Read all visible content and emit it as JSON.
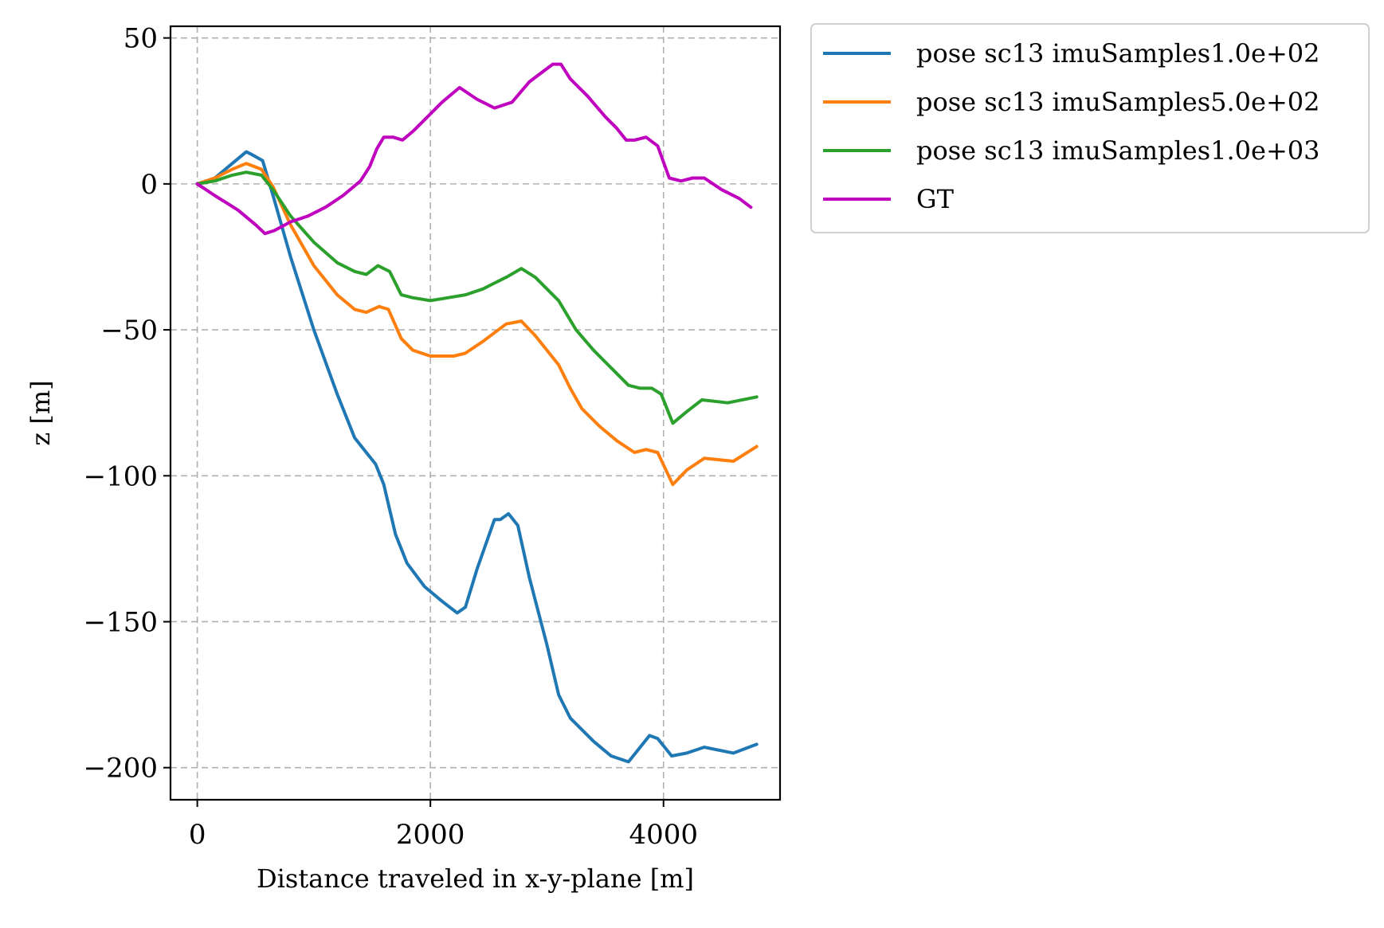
{
  "chart_data": {
    "type": "line",
    "xlabel": "Distance traveled in x-y-plane [m]",
    "ylabel": "z [m]",
    "xlim": [
      -230,
      5000
    ],
    "ylim": [
      -211,
      54
    ],
    "xticks": [
      0,
      2000,
      4000
    ],
    "yticks": [
      50,
      0,
      -50,
      -100,
      -150,
      -200
    ],
    "xtick_labels": [
      "0",
      "2000",
      "4000"
    ],
    "ytick_labels": [
      "50",
      "0",
      "−50",
      "−100",
      "−150",
      "−200"
    ],
    "grid": true,
    "legend_position": "outside-top-right",
    "series": [
      {
        "name": "pose sc13 imuSamples1.0e+02",
        "color": "#1f77b4",
        "points": [
          [
            0,
            0
          ],
          [
            150,
            2
          ],
          [
            300,
            7
          ],
          [
            420,
            11
          ],
          [
            470,
            10
          ],
          [
            560,
            8
          ],
          [
            650,
            -4
          ],
          [
            800,
            -25
          ],
          [
            1000,
            -50
          ],
          [
            1200,
            -72
          ],
          [
            1350,
            -87
          ],
          [
            1450,
            -92
          ],
          [
            1530,
            -96
          ],
          [
            1600,
            -103
          ],
          [
            1700,
            -120
          ],
          [
            1800,
            -130
          ],
          [
            1950,
            -138
          ],
          [
            2100,
            -143
          ],
          [
            2230,
            -147
          ],
          [
            2300,
            -145
          ],
          [
            2400,
            -132
          ],
          [
            2550,
            -115
          ],
          [
            2600,
            -115
          ],
          [
            2670,
            -113
          ],
          [
            2750,
            -117
          ],
          [
            2850,
            -135
          ],
          [
            3000,
            -158
          ],
          [
            3100,
            -175
          ],
          [
            3200,
            -183
          ],
          [
            3400,
            -191
          ],
          [
            3550,
            -196
          ],
          [
            3700,
            -198
          ],
          [
            3800,
            -193
          ],
          [
            3880,
            -189
          ],
          [
            3950,
            -190
          ],
          [
            4070,
            -196
          ],
          [
            4200,
            -195
          ],
          [
            4350,
            -193
          ],
          [
            4600,
            -195
          ],
          [
            4800,
            -192
          ]
        ]
      },
      {
        "name": "pose sc13 imuSamples5.0e+02",
        "color": "#ff7f0e",
        "points": [
          [
            0,
            0
          ],
          [
            150,
            2
          ],
          [
            300,
            5
          ],
          [
            420,
            7
          ],
          [
            550,
            5
          ],
          [
            650,
            -1
          ],
          [
            800,
            -14
          ],
          [
            1000,
            -28
          ],
          [
            1200,
            -38
          ],
          [
            1350,
            -43
          ],
          [
            1450,
            -44
          ],
          [
            1560,
            -42
          ],
          [
            1640,
            -43
          ],
          [
            1750,
            -53
          ],
          [
            1850,
            -57
          ],
          [
            2000,
            -59
          ],
          [
            2200,
            -59
          ],
          [
            2300,
            -58
          ],
          [
            2450,
            -54
          ],
          [
            2550,
            -51
          ],
          [
            2650,
            -48
          ],
          [
            2780,
            -47
          ],
          [
            2900,
            -52
          ],
          [
            3100,
            -62
          ],
          [
            3200,
            -70
          ],
          [
            3300,
            -77
          ],
          [
            3450,
            -83
          ],
          [
            3600,
            -88
          ],
          [
            3750,
            -92
          ],
          [
            3850,
            -91
          ],
          [
            3950,
            -92
          ],
          [
            4080,
            -103
          ],
          [
            4200,
            -98
          ],
          [
            4350,
            -94
          ],
          [
            4600,
            -95
          ],
          [
            4800,
            -90
          ]
        ]
      },
      {
        "name": "pose sc13 imuSamples1.0e+03",
        "color": "#2ca02c",
        "points": [
          [
            0,
            0
          ],
          [
            150,
            1
          ],
          [
            300,
            3
          ],
          [
            420,
            4
          ],
          [
            550,
            3
          ],
          [
            650,
            -2
          ],
          [
            800,
            -11
          ],
          [
            1000,
            -20
          ],
          [
            1200,
            -27
          ],
          [
            1350,
            -30
          ],
          [
            1450,
            -31
          ],
          [
            1550,
            -28
          ],
          [
            1650,
            -30
          ],
          [
            1750,
            -38
          ],
          [
            1850,
            -39
          ],
          [
            2000,
            -40
          ],
          [
            2150,
            -39
          ],
          [
            2300,
            -38
          ],
          [
            2450,
            -36
          ],
          [
            2550,
            -34
          ],
          [
            2650,
            -32
          ],
          [
            2780,
            -29
          ],
          [
            2900,
            -32
          ],
          [
            3100,
            -40
          ],
          [
            3250,
            -50
          ],
          [
            3400,
            -57
          ],
          [
            3550,
            -63
          ],
          [
            3700,
            -69
          ],
          [
            3800,
            -70
          ],
          [
            3900,
            -70
          ],
          [
            3980,
            -72
          ],
          [
            4080,
            -82
          ],
          [
            4200,
            -78
          ],
          [
            4330,
            -74
          ],
          [
            4550,
            -75
          ],
          [
            4800,
            -73
          ]
        ]
      },
      {
        "name": "GT",
        "color": "#bf00bf",
        "points": [
          [
            0,
            0
          ],
          [
            150,
            -4
          ],
          [
            350,
            -9
          ],
          [
            500,
            -14
          ],
          [
            580,
            -17
          ],
          [
            660,
            -16
          ],
          [
            800,
            -13
          ],
          [
            950,
            -11
          ],
          [
            1100,
            -8
          ],
          [
            1250,
            -4
          ],
          [
            1400,
            1
          ],
          [
            1480,
            6
          ],
          [
            1540,
            12
          ],
          [
            1600,
            16
          ],
          [
            1680,
            16
          ],
          [
            1760,
            15
          ],
          [
            1850,
            18
          ],
          [
            1950,
            22
          ],
          [
            2100,
            28
          ],
          [
            2250,
            33
          ],
          [
            2400,
            29
          ],
          [
            2550,
            26
          ],
          [
            2700,
            28
          ],
          [
            2850,
            35
          ],
          [
            2950,
            38
          ],
          [
            3050,
            41
          ],
          [
            3120,
            41
          ],
          [
            3200,
            36
          ],
          [
            3350,
            30
          ],
          [
            3500,
            23
          ],
          [
            3600,
            19
          ],
          [
            3680,
            15
          ],
          [
            3750,
            15
          ],
          [
            3850,
            16
          ],
          [
            3950,
            13
          ],
          [
            4050,
            2
          ],
          [
            4150,
            1
          ],
          [
            4250,
            2
          ],
          [
            4350,
            2
          ],
          [
            4500,
            -2
          ],
          [
            4650,
            -5
          ],
          [
            4750,
            -8
          ]
        ]
      }
    ]
  }
}
